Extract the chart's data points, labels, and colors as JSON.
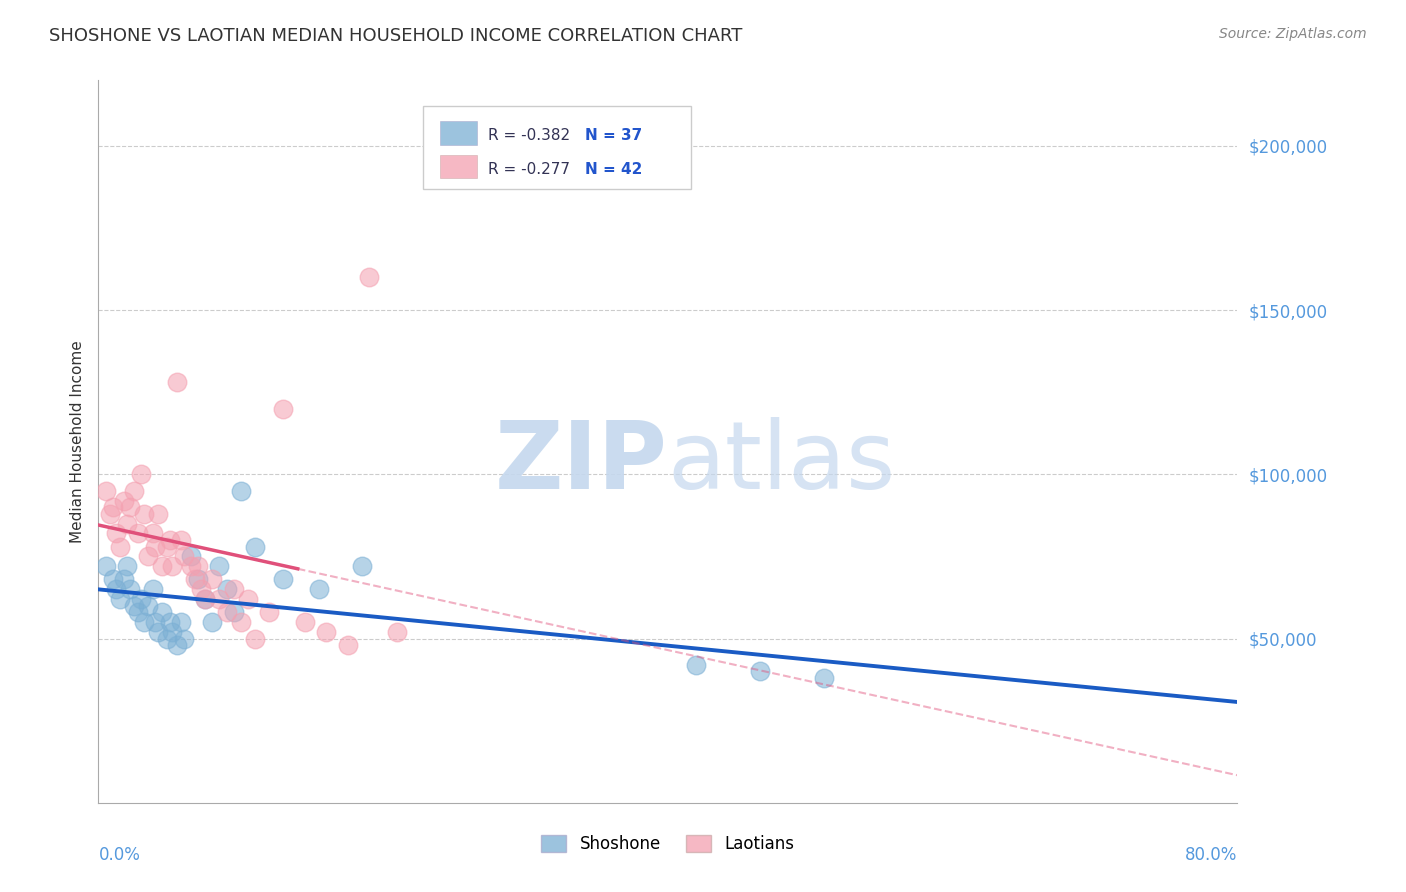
{
  "title": "SHOSHONE VS LAOTIAN MEDIAN HOUSEHOLD INCOME CORRELATION CHART",
  "source": "Source: ZipAtlas.com",
  "ylabel": "Median Household Income",
  "xlim": [
    0.0,
    0.8
  ],
  "ylim": [
    0,
    220000
  ],
  "legend_r_blue": "R = -0.382",
  "legend_n_blue": "N = 37",
  "legend_r_pink": "R = -0.277",
  "legend_n_pink": "N = 42",
  "shoshone_color": "#7bafd4",
  "shoshone_edge": "#5599cc",
  "laotian_color": "#f4a0b0",
  "laotian_edge": "#e07090",
  "blue_line_color": "#1a5bc4",
  "pink_line_color": "#e0507a",
  "shoshone_x": [
    0.005,
    0.01,
    0.012,
    0.015,
    0.018,
    0.02,
    0.022,
    0.025,
    0.028,
    0.03,
    0.032,
    0.035,
    0.038,
    0.04,
    0.042,
    0.045,
    0.048,
    0.05,
    0.052,
    0.055,
    0.058,
    0.06,
    0.065,
    0.07,
    0.075,
    0.08,
    0.085,
    0.09,
    0.095,
    0.1,
    0.11,
    0.13,
    0.155,
    0.185,
    0.42,
    0.465,
    0.51
  ],
  "shoshone_y": [
    72000,
    68000,
    65000,
    62000,
    68000,
    72000,
    65000,
    60000,
    58000,
    62000,
    55000,
    60000,
    65000,
    55000,
    52000,
    58000,
    50000,
    55000,
    52000,
    48000,
    55000,
    50000,
    75000,
    68000,
    62000,
    55000,
    72000,
    65000,
    58000,
    95000,
    78000,
    68000,
    65000,
    72000,
    42000,
    40000,
    38000
  ],
  "laotian_x": [
    0.005,
    0.008,
    0.01,
    0.012,
    0.015,
    0.018,
    0.02,
    0.022,
    0.025,
    0.028,
    0.03,
    0.032,
    0.035,
    0.038,
    0.04,
    0.042,
    0.045,
    0.048,
    0.05,
    0.052,
    0.055,
    0.058,
    0.06,
    0.065,
    0.068,
    0.07,
    0.072,
    0.075,
    0.08,
    0.085,
    0.09,
    0.095,
    0.1,
    0.105,
    0.11,
    0.12,
    0.13,
    0.145,
    0.16,
    0.175,
    0.19,
    0.21
  ],
  "laotian_y": [
    95000,
    88000,
    90000,
    82000,
    78000,
    92000,
    85000,
    90000,
    95000,
    82000,
    100000,
    88000,
    75000,
    82000,
    78000,
    88000,
    72000,
    78000,
    80000,
    72000,
    128000,
    80000,
    75000,
    72000,
    68000,
    72000,
    65000,
    62000,
    68000,
    62000,
    58000,
    65000,
    55000,
    62000,
    50000,
    58000,
    120000,
    55000,
    52000,
    48000,
    160000,
    52000
  ],
  "background_color": "#ffffff",
  "grid_color": "#cccccc",
  "watermark_zip_color": "#c5d8ee",
  "watermark_atlas_color": "#c5d8ee"
}
